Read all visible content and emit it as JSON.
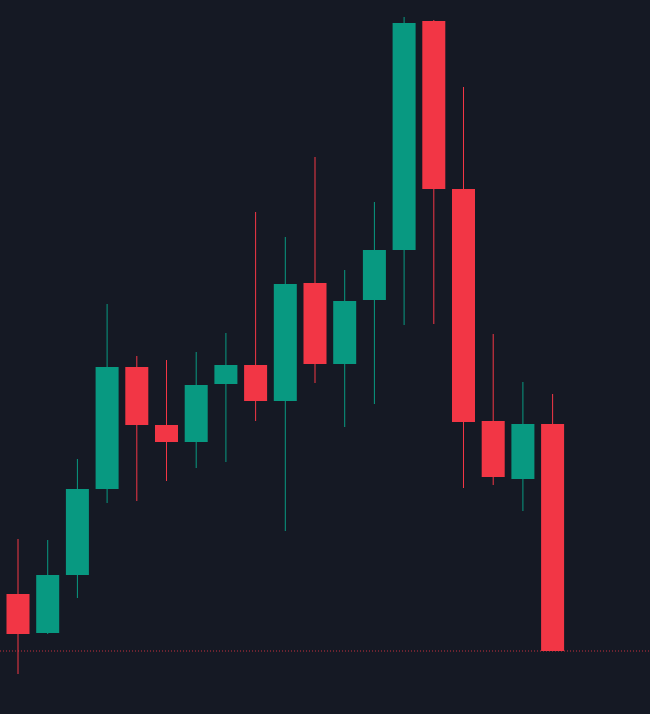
{
  "chart_data": {
    "type": "candlestick",
    "up_color": "#089981",
    "down_color": "#f23645",
    "price_line": true,
    "ylim": [
      0,
      714
    ],
    "open": [
      120,
      81,
      139,
      225,
      347,
      289,
      272,
      330,
      349,
      313,
      431,
      350,
      414,
      464,
      693,
      525,
      293,
      235,
      290
    ],
    "high": [
      175,
      174,
      255,
      410,
      358,
      354,
      362,
      381,
      502,
      477,
      557,
      444,
      512,
      697,
      694,
      627,
      380,
      332,
      320
    ],
    "low": [
      40,
      80,
      116,
      211,
      213,
      233,
      246,
      252,
      293,
      183,
      331,
      287,
      310,
      389,
      390,
      226,
      229,
      203,
      63
    ],
    "close": [
      80,
      139,
      225,
      347,
      289,
      272,
      329,
      349,
      313,
      430,
      350,
      413,
      464,
      691,
      525,
      292,
      237,
      290,
      63
    ]
  }
}
